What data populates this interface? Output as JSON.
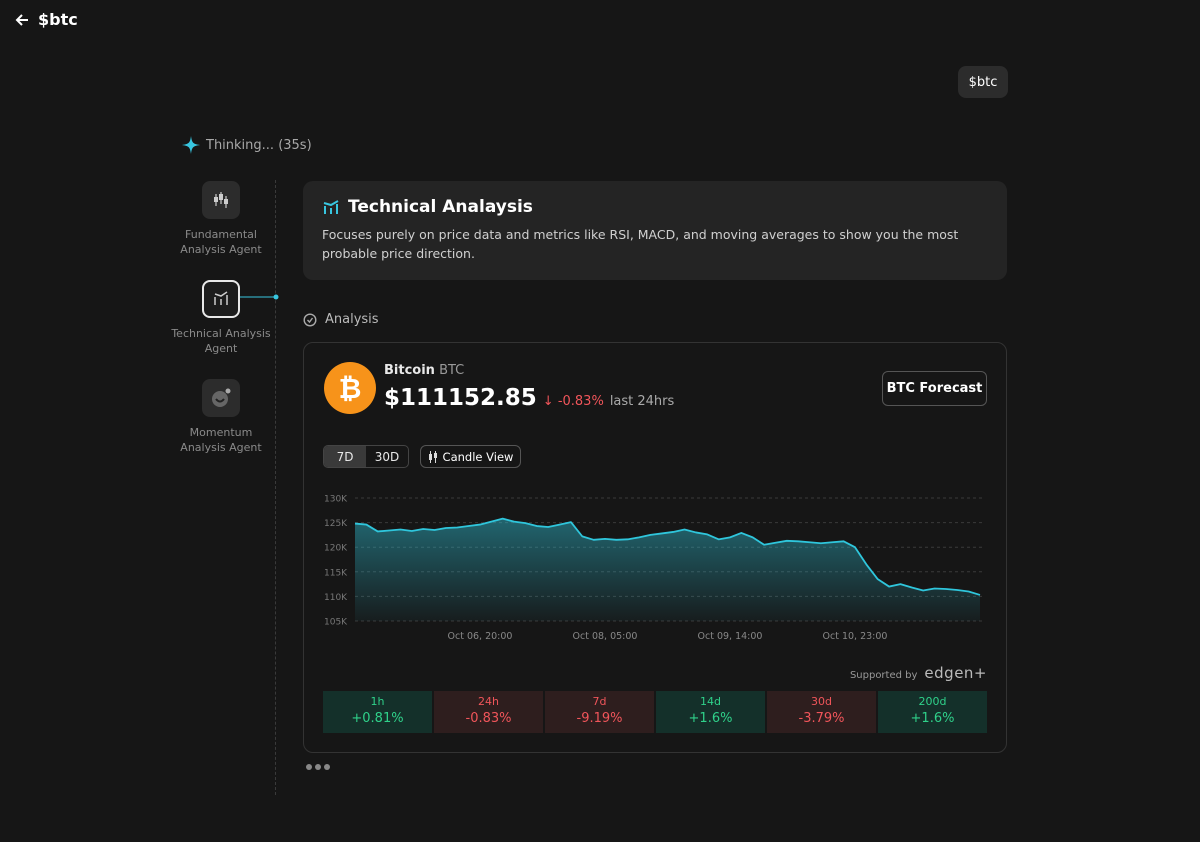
{
  "header": {
    "title": "$btc"
  },
  "user_message": "$btc",
  "status": "Thinking... (35s)",
  "agents": [
    {
      "label": "Fundamental Analysis Agent"
    },
    {
      "label": "Technical Analysis Agent"
    },
    {
      "label": "Momentum Analysis Agent"
    }
  ],
  "panel": {
    "title": "Technical Analaysis",
    "description": "Focuses purely on price data and metrics like RSI, MACD, and moving averages to show you the most probable price direction."
  },
  "analysis_label": "Analysis",
  "coin": {
    "name": "Bitcoin",
    "symbol": "BTC",
    "price": "$111152.85",
    "change": "-0.83%",
    "change_period": "last 24hrs",
    "forecast_button": "BTC Forecast",
    "tabs": [
      "7D",
      "30D"
    ],
    "view_button": "Candle View",
    "supported_by": "Supported by",
    "brand": "edgen+"
  },
  "chart_data": {
    "type": "area",
    "color": "#2fc6dc",
    "grid": true,
    "values": [
      124800,
      124600,
      123200,
      123400,
      123600,
      123300,
      123700,
      123500,
      123900,
      124000,
      124300,
      124600,
      125200,
      125800,
      125200,
      124900,
      124300,
      124100,
      124600,
      125100,
      122200,
      121500,
      121700,
      121500,
      121600,
      122000,
      122500,
      122800,
      123100,
      123600,
      123000,
      122600,
      121600,
      122000,
      122900,
      122000,
      120500,
      120900,
      121300,
      121200,
      121000,
      120800,
      121000,
      121200,
      120000,
      116500,
      113500,
      112000,
      112500,
      111800,
      111200,
      111600,
      111500,
      111300,
      111000,
      110300
    ],
    "xlim": [
      0,
      55
    ],
    "xticks": [
      {
        "value": 11,
        "label": "Oct 06, 20:00"
      },
      {
        "value": 22,
        "label": "Oct 08, 05:00"
      },
      {
        "value": 33,
        "label": "Oct 09, 14:00"
      },
      {
        "value": 44,
        "label": "Oct 10, 23:00"
      }
    ],
    "ylim": [
      105000,
      130000
    ],
    "yticks": [
      {
        "value": 130000,
        "label": "130K"
      },
      {
        "value": 125000,
        "label": "125K"
      },
      {
        "value": 120000,
        "label": "120K"
      },
      {
        "value": 115000,
        "label": "115K"
      },
      {
        "value": 110000,
        "label": "110K"
      },
      {
        "value": 105000,
        "label": "105K"
      }
    ]
  },
  "performance": [
    {
      "period": "1h",
      "change": "+0.81%"
    },
    {
      "period": "24h",
      "change": "-0.83%"
    },
    {
      "period": "7d",
      "change": "-9.19%"
    },
    {
      "period": "14d",
      "change": "+1.6%"
    },
    {
      "period": "30d",
      "change": "-3.79%"
    },
    {
      "period": "200d",
      "change": "+1.6%"
    }
  ]
}
